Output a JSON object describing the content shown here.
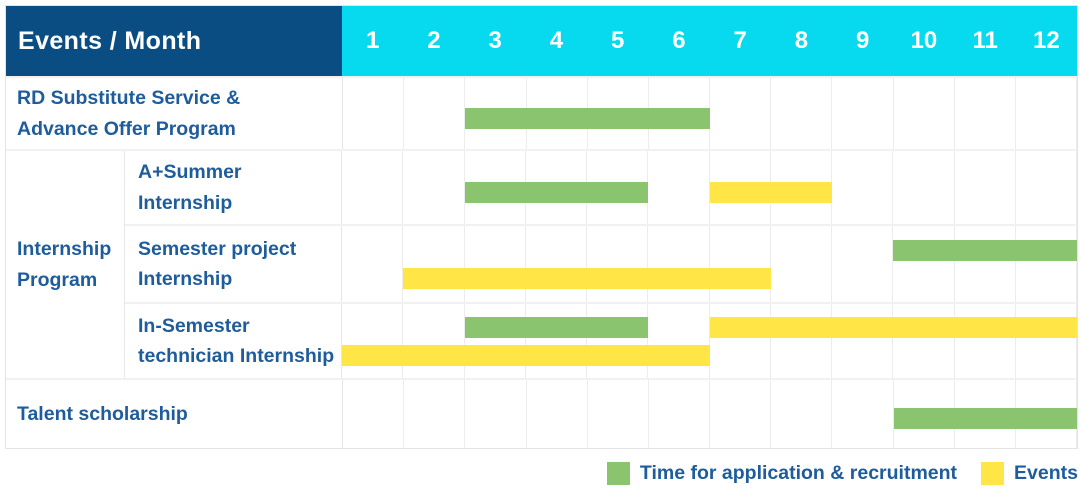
{
  "header": {
    "title": "Events / Month",
    "months": [
      "1",
      "2",
      "3",
      "4",
      "5",
      "6",
      "7",
      "8",
      "9",
      "10",
      "11",
      "12"
    ]
  },
  "colors": {
    "application": "#8BC46E",
    "event": "#FFE646",
    "header_bg": "#0A4D83",
    "months_bg": "#07D9EE",
    "label_text": "#1E5C9B"
  },
  "rows": [
    {
      "kind": "simple",
      "label": "RD Substitute Service &\nAdvance Offer Program",
      "bars": [
        {
          "type": "application",
          "track": "single",
          "start": 3,
          "end": 6
        }
      ]
    },
    {
      "kind": "group",
      "label": "Internship\nProgram",
      "children": [
        {
          "label": "A+Summer\nInternship",
          "bars": [
            {
              "type": "application",
              "track": "single",
              "start": 3,
              "end": 5
            },
            {
              "type": "event",
              "track": "single",
              "start": 7,
              "end": 8
            }
          ]
        },
        {
          "label": "Semester project\nInternship",
          "bars": [
            {
              "type": "application",
              "track": "top",
              "start": 10,
              "end": 12
            },
            {
              "type": "event",
              "track": "bottom",
              "start": 2,
              "end": 7
            }
          ]
        },
        {
          "label": "In-Semester\ntechnician Internship",
          "bars": [
            {
              "type": "application",
              "track": "top",
              "start": 3,
              "end": 5
            },
            {
              "type": "event",
              "track": "top",
              "start": 7,
              "end": 12
            },
            {
              "type": "event",
              "track": "bottom",
              "start": 1,
              "end": 6
            }
          ]
        }
      ]
    },
    {
      "kind": "simple",
      "label": "Talent scholarship",
      "bars": [
        {
          "type": "application",
          "track": "single",
          "start": 10,
          "end": 12
        }
      ]
    }
  ],
  "legend": {
    "items": [
      {
        "type": "application",
        "label": "Time for application & recruitment"
      },
      {
        "type": "event",
        "label": "Events"
      }
    ]
  },
  "chart_data": {
    "type": "bar",
    "variant": "gantt",
    "title": "Events / Month",
    "x_axis": {
      "label": "Month",
      "ticks": [
        1,
        2,
        3,
        4,
        5,
        6,
        7,
        8,
        9,
        10,
        11,
        12
      ],
      "range": [
        1,
        12
      ]
    },
    "grid": true,
    "legend_position": "bottom-right",
    "legend": [
      "Time for application & recruitment",
      "Events"
    ],
    "rows": [
      "RD Substitute Service & Advance Offer Program",
      "Internship Program / A+Summer Internship",
      "Internship Program / Semester project Internship",
      "Internship Program / In-Semester technician Internship",
      "Talent scholarship"
    ],
    "series": [
      {
        "name": "Time for application & recruitment",
        "color": "#8BC46E",
        "spans": [
          {
            "row": "RD Substitute Service & Advance Offer Program",
            "start_month": 3,
            "end_month": 6
          },
          {
            "row": "A+Summer Internship",
            "start_month": 3,
            "end_month": 5
          },
          {
            "row": "Semester project Internship",
            "start_month": 10,
            "end_month": 12
          },
          {
            "row": "In-Semester technician Internship",
            "start_month": 3,
            "end_month": 5
          },
          {
            "row": "Talent scholarship",
            "start_month": 10,
            "end_month": 12
          }
        ]
      },
      {
        "name": "Events",
        "color": "#FFE646",
        "spans": [
          {
            "row": "A+Summer Internship",
            "start_month": 7,
            "end_month": 8
          },
          {
            "row": "Semester project Internship",
            "start_month": 2,
            "end_month": 7
          },
          {
            "row": "In-Semester technician Internship",
            "start_month": 7,
            "end_month": 12
          },
          {
            "row": "In-Semester technician Internship",
            "start_month": 1,
            "end_month": 6
          }
        ]
      }
    ]
  }
}
